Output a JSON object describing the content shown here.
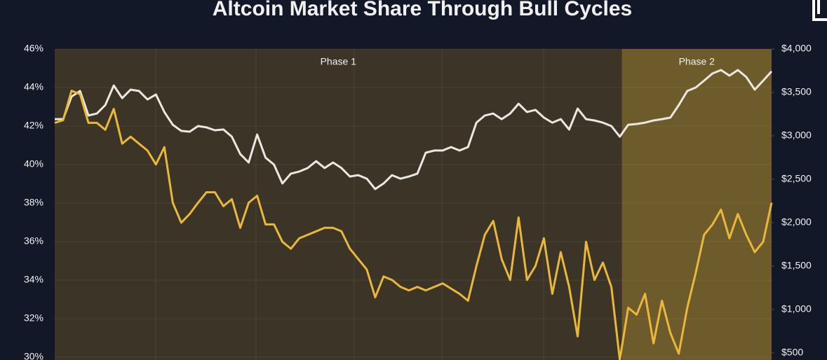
{
  "chart_data": {
    "type": "line",
    "title": "Altcoin Market Share Through Bull Cycles",
    "xlim": [
      0,
      85
    ],
    "ylim": [
      30,
      46
    ],
    "yticks": [
      {
        "value": 30,
        "label": "30%"
      },
      {
        "value": 32,
        "label": "32%"
      },
      {
        "value": 34,
        "label": "34%"
      },
      {
        "value": 36,
        "label": "36%"
      },
      {
        "value": 38,
        "label": "38%"
      },
      {
        "value": 40,
        "label": "40%"
      },
      {
        "value": 42,
        "label": "42%"
      },
      {
        "value": 44,
        "label": "44%"
      },
      {
        "value": 46,
        "label": "46%"
      }
    ],
    "y2lim": [
      450,
      4000
    ],
    "y2ticks": [
      {
        "value": 500,
        "label": "$500"
      },
      {
        "value": 1000,
        "label": "$1,000"
      },
      {
        "value": 1500,
        "label": "$1,500"
      },
      {
        "value": 2000,
        "label": "$2,000"
      },
      {
        "value": 2500,
        "label": "$2,500"
      },
      {
        "value": 3000,
        "label": "$3,000"
      },
      {
        "value": 3500,
        "label": "$3,500"
      },
      {
        "value": 4000,
        "label": "$4,000"
      }
    ],
    "grid": true,
    "phases": [
      {
        "label": "Phase 1",
        "start": 0,
        "end": 67.25,
        "color": "#3b3427"
      },
      {
        "label": "Phase 2",
        "start": 67.25,
        "end": 85,
        "color": "#6d5b2c"
      }
    ],
    "series": [
      {
        "color": "#ebe8e1",
        "values": [
          42.36,
          42.36,
          43.53,
          43.82,
          42.55,
          42.65,
          43.09,
          44.11,
          43.45,
          43.89,
          43.82,
          43.38,
          43.64,
          42.73,
          42.07,
          41.75,
          41.71,
          42.0,
          41.93,
          41.78,
          41.82,
          41.45,
          40.55,
          40.11,
          41.56,
          40.36,
          40.0,
          39.02,
          39.53,
          39.64,
          39.82,
          40.18,
          39.82,
          40.11,
          39.82,
          39.38,
          39.45,
          39.27,
          38.73,
          39.02,
          39.45,
          39.27,
          39.38,
          39.53,
          40.62,
          40.73,
          40.73,
          40.91,
          40.73,
          40.91,
          42.18,
          42.55,
          42.65,
          42.36,
          42.65,
          43.16,
          42.73,
          42.84,
          42.44,
          42.18,
          42.36,
          41.82,
          42.91,
          42.36,
          42.29,
          42.18,
          42.0,
          41.45,
          42.07,
          42.11,
          42.18,
          42.29,
          42.36,
          42.44,
          43.09,
          43.82,
          44.0,
          44.36,
          44.73,
          44.91,
          44.62,
          44.91,
          44.55,
          43.89,
          44.36,
          44.84
        ]
      },
      {
        "color": "#e9b83b",
        "axis": "y2",
        "values": [
          3150,
          3180,
          3520,
          3480,
          3150,
          3150,
          3070,
          3310,
          2910,
          2990,
          2910,
          2830,
          2670,
          2870,
          2230,
          2000,
          2100,
          2230,
          2350,
          2350,
          2190,
          2270,
          1940,
          2230,
          2310,
          1980,
          1980,
          1780,
          1700,
          1820,
          1860,
          1900,
          1940,
          1940,
          1900,
          1700,
          1580,
          1460,
          1140,
          1380,
          1340,
          1260,
          1220,
          1260,
          1220,
          1260,
          1300,
          1240,
          1180,
          1100,
          1500,
          1860,
          2020,
          1580,
          1340,
          2060,
          1340,
          1500,
          1820,
          1180,
          1660,
          1260,
          690,
          1780,
          1340,
          1540,
          1260,
          420,
          1020,
          940,
          1180,
          610,
          1100,
          730,
          490,
          1020,
          1420,
          1860,
          1980,
          2150,
          1820,
          2100,
          1860,
          1660,
          1780,
          2230
        ]
      }
    ]
  }
}
